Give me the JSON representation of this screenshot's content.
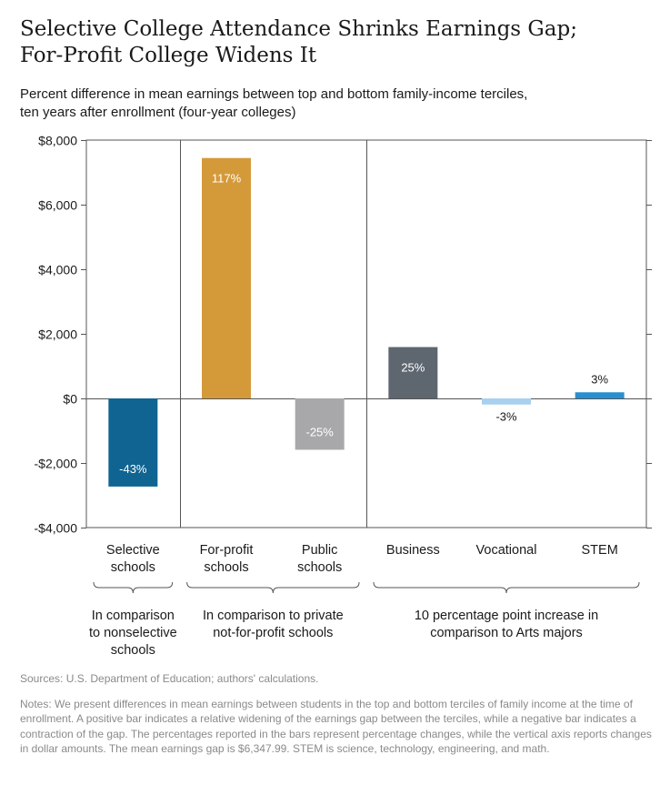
{
  "title_line1": "Selective College Attendance Shrinks Earnings Gap;",
  "title_line2": "For-Profit College Widens It",
  "subtitle_line1": "Percent difference in mean earnings between top and bottom family-income terciles,",
  "subtitle_line2": "ten years after enrollment (four-year colleges)",
  "sources": "Sources: U.S. Department of Education; authors' calculations.",
  "notes": "Notes: We present differences in mean earnings between students in the top and bottom terciles of family income at the time of enrollment. A positive bar indicates a relative widening of the earnings gap between the terciles, while a negative bar indicates a contraction of the gap. The percentages reported in the bars represent percentage changes, while the vertical axis reports changes in dollar amounts. The mean earnings gap is $6,347.99. STEM is science, technology, engineering, and math.",
  "chart_data": {
    "type": "bar",
    "ylim": [
      -4000,
      8000
    ],
    "yticks": [
      8000,
      6000,
      4000,
      2000,
      0,
      -2000,
      -4000
    ],
    "ytick_labels": [
      "$8,000",
      "$6,000",
      "$4,000",
      "$2,000",
      "$0",
      "-$2,000",
      "-$4,000"
    ],
    "grid": false,
    "categories": [
      [
        "Selective",
        "schools"
      ],
      [
        "For-profit",
        "schools"
      ],
      [
        "Public",
        "schools"
      ],
      [
        "Business"
      ],
      [
        "Vocational"
      ],
      [
        "STEM"
      ]
    ],
    "values": [
      -2730,
      7445,
      -1590,
      1590,
      -190,
      190
    ],
    "bar_labels": [
      "-43%",
      "117%",
      "-25%",
      "25%",
      "-3%",
      "3%"
    ],
    "colors": [
      "#0f6491",
      "#d49a3a",
      "#a8a8ab",
      "#5e6670",
      "#a9d0ef",
      "#2a8fd0"
    ],
    "label_colors": [
      "#ffffff",
      "#ffffff",
      "#ffffff",
      "#ffffff",
      "#1a1a1a",
      "#1a1a1a"
    ],
    "groups": [
      {
        "label": [
          "In comparison",
          "to nonselective",
          "schools"
        ],
        "members": [
          0
        ]
      },
      {
        "label": [
          "In comparison to private",
          "not-for-profit schools"
        ],
        "members": [
          1,
          2
        ]
      },
      {
        "label": [
          "10 percentage point increase in",
          "comparison to Arts majors"
        ],
        "members": [
          3,
          4,
          5
        ]
      }
    ]
  }
}
